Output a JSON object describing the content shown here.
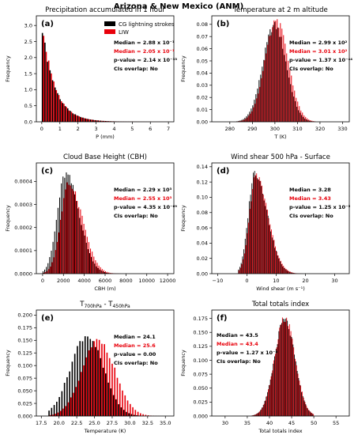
{
  "figure_title": "Arizona & New Mexico (ANM)",
  "legend": [
    {
      "label": "CG lightning strokes",
      "color": "#000000"
    },
    {
      "label": "LIW",
      "color": "#e8000b"
    }
  ],
  "chart_data": [
    {
      "type": "bar",
      "letter": "(a)",
      "title": "Precipitation accumulated in 1 hour",
      "title_sub": null,
      "xlabel": "P (mm)",
      "ylabel": "Frequency",
      "xlim": [
        -0.3,
        7.3
      ],
      "ylim": [
        0,
        3.3
      ],
      "xticks": [
        0,
        1,
        2,
        3,
        4,
        5,
        6,
        7
      ],
      "xtick_labels": [
        "0",
        "1",
        "2",
        "3",
        "4",
        "5",
        "6",
        "7"
      ],
      "yticks": [
        0,
        0.5,
        1.0,
        1.5,
        2.0,
        2.5,
        3.0
      ],
      "ytick_labels": [
        "0.0",
        "0.5",
        "1.0",
        "1.5",
        "2.0",
        "2.5",
        "3.0"
      ],
      "dist": {
        "shape": "exp",
        "xmin": 0,
        "xmax": 7,
        "bins": 50,
        "peak": 3.18,
        "decay": 0.7,
        "floor": 0.02,
        "shift": 0.0,
        "peak2": 3.05,
        "decay2": 0.68
      },
      "stats": {
        "median_cg": "Median = 2.88 x 10⁻¹",
        "median_liw": "Median = 2.05 x 10⁻¹",
        "pvalue": "p-value = 2.14 x 10⁻³³",
        "overlap": "CIs overlap: No"
      },
      "stats_pos": "right"
    },
    {
      "type": "bar",
      "letter": "(b)",
      "title": "Temperature at 2 m altitude",
      "title_sub": null,
      "xlabel": "T (K)",
      "ylabel": "Frequency",
      "xlim": [
        272,
        333
      ],
      "ylim": [
        0,
        0.087
      ],
      "xticks": [
        280,
        290,
        300,
        310,
        320,
        330
      ],
      "xtick_labels": [
        "280",
        "290",
        "300",
        "310",
        "320",
        "330"
      ],
      "yticks": [
        0,
        0.01,
        0.02,
        0.03,
        0.04,
        0.05,
        0.06,
        0.07,
        0.08
      ],
      "ytick_labels": [
        "0.00",
        "0.01",
        "0.02",
        "0.03",
        "0.04",
        "0.05",
        "0.06",
        "0.07",
        "0.08"
      ],
      "dist": {
        "shape": "gauss",
        "xmin": 283,
        "xmax": 318,
        "bins": 50,
        "peak": 0.079,
        "mu": 300,
        "sigma": 5.2,
        "shift": 0.6,
        "peak2": 0.082
      },
      "stats": {
        "median_cg": "Median = 2.99 x 10²",
        "median_liw": "Median = 3.01 x 10²",
        "pvalue": "p-value = 1.37 x 10⁻⁴⁴",
        "overlap": "CIs overlap: No"
      },
      "stats_pos": "right"
    },
    {
      "type": "bar",
      "letter": "(c)",
      "title": "Cloud Base Height (CBH)",
      "title_sub": null,
      "xlabel": "CBH (m)",
      "ylabel": "Frequency",
      "xlim": [
        -600,
        12600
      ],
      "ylim": [
        0,
        0.00048
      ],
      "xticks": [
        0,
        2000,
        4000,
        6000,
        8000,
        10000,
        12000
      ],
      "xtick_labels": [
        "0",
        "2000",
        "4000",
        "6000",
        "8000",
        "10000",
        "12000"
      ],
      "yticks": [
        0,
        0.0001,
        0.0002,
        0.0003,
        0.0004
      ],
      "ytick_labels": [
        "0.0000",
        "0.0001",
        "0.0002",
        "0.0003",
        "0.0004"
      ],
      "dist": {
        "shape": "skew",
        "xmin": 0,
        "xmax": 8000,
        "bins": 50,
        "peak": 0.00043,
        "mu": 2250,
        "sigma_l": 800,
        "sigma_r": 1300,
        "shift": 260,
        "peak2": 0.00039
      },
      "stats": {
        "median_cg": "Median = 2.29 x 10³",
        "median_liw": "Median = 2.55 x 10³",
        "pvalue": "p-value = 4.35 x 10⁻⁶⁹",
        "overlap": "CIs overlap: No"
      },
      "stats_pos": "right"
    },
    {
      "type": "bar",
      "letter": "(d)",
      "title": "Wind shear 500 hPa - Surface",
      "title_sub": null,
      "xlabel": "Wind shear (m s⁻¹)",
      "ylabel": "Frequency",
      "xlim": [
        -12,
        35
      ],
      "ylim": [
        0,
        0.145
      ],
      "xticks": [
        -10,
        0,
        10,
        20,
        30
      ],
      "xtick_labels": [
        "−10",
        "0",
        "10",
        "20",
        "30"
      ],
      "yticks": [
        0,
        0.02,
        0.04,
        0.06,
        0.08,
        0.1,
        0.12,
        0.14
      ],
      "ytick_labels": [
        "0.00",
        "0.02",
        "0.04",
        "0.06",
        "0.08",
        "0.10",
        "0.12",
        "0.14"
      ],
      "dist": {
        "shape": "skew",
        "xmin": -3,
        "xmax": 20,
        "bins": 50,
        "peak": 0.133,
        "mu": 2.8,
        "sigma_l": 2.2,
        "sigma_r": 4.2,
        "shift": 0.15,
        "peak2": 0.128
      },
      "stats": {
        "median_cg": "Median = 3.28",
        "median_liw": "Median = 3.43",
        "pvalue": "p-value = 1.25 x 10⁻⁵",
        "overlap": "CIs overlap: No"
      },
      "stats_pos": "right"
    },
    {
      "type": "bar",
      "letter": "(e)",
      "title": "T",
      "title_sub": [
        "700hPa",
        " - T",
        "450hPa"
      ],
      "xlabel": "Temperature (K)",
      "ylabel": "Frequency",
      "xlim": [
        16.8,
        36.2
      ],
      "ylim": [
        0,
        0.21
      ],
      "xticks": [
        17.5,
        20,
        22.5,
        25,
        27.5,
        30,
        32.5,
        35
      ],
      "xtick_labels": [
        "17.5",
        "20.0",
        "22.5",
        "25.0",
        "27.5",
        "30.0",
        "32.5",
        "35.0"
      ],
      "yticks": [
        0,
        0.025,
        0.05,
        0.075,
        0.1,
        0.125,
        0.15,
        0.175,
        0.2
      ],
      "ytick_labels": [
        "0.000",
        "0.025",
        "0.050",
        "0.075",
        "0.100",
        "0.125",
        "0.150",
        "0.175",
        "0.200"
      ],
      "dist": {
        "shape": "gauss",
        "xmin": 18.5,
        "xmax": 34.5,
        "bins": 44,
        "peak": 0.16,
        "mu": 24.0,
        "sigma": 2.3,
        "shift": 1.5,
        "peak2": 0.15
      },
      "stats": {
        "median_cg": "Median = 24.1",
        "median_liw": "Median = 25.6",
        "pvalue": "p-value = 0.00",
        "overlap": "CIs overlap: No"
      },
      "stats_pos": "right"
    },
    {
      "type": "bar",
      "letter": "(f)",
      "title": "Total totals index",
      "title_sub": null,
      "xlabel": "Total totals index",
      "ylabel": "Frequency",
      "xlim": [
        27,
        58
      ],
      "ylim": [
        0,
        0.19
      ],
      "xticks": [
        30,
        35,
        40,
        45,
        50,
        55
      ],
      "xtick_labels": [
        "30",
        "35",
        "40",
        "45",
        "50",
        "55"
      ],
      "yticks": [
        0,
        0.025,
        0.05,
        0.075,
        0.1,
        0.125,
        0.15,
        0.175
      ],
      "ytick_labels": [
        "0.000",
        "0.025",
        "0.050",
        "0.075",
        "0.100",
        "0.125",
        "0.150",
        "0.175"
      ],
      "dist": {
        "shape": "gauss",
        "xmin": 36,
        "xmax": 50,
        "bins": 44,
        "peak": 0.172,
        "mu": 43.5,
        "sigma": 2.3,
        "shift": -0.1,
        "peak2": 0.176
      },
      "stats": {
        "median_cg": "Median = 43.5",
        "median_liw": "Median = 43.4",
        "pvalue": "p-value = 1.27 x 10⁻⁴",
        "overlap": "CIs overlap: No"
      },
      "stats_pos": "left"
    }
  ]
}
